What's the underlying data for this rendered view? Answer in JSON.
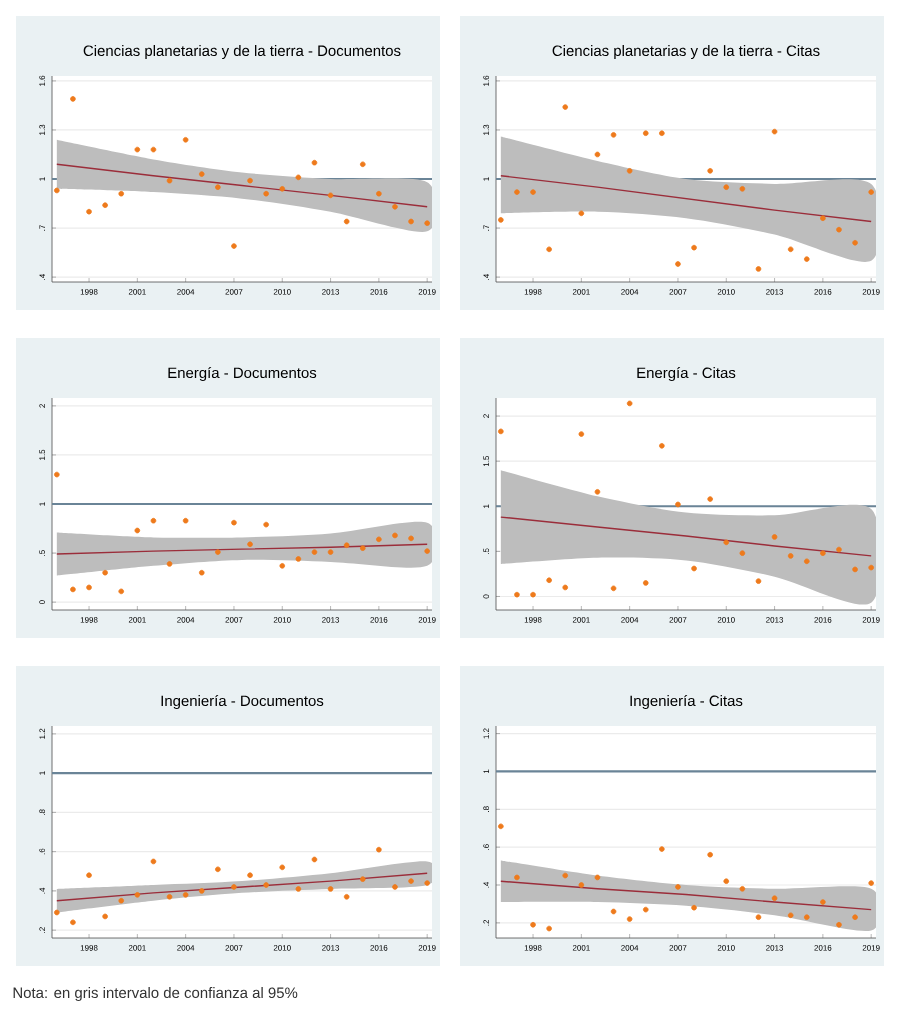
{
  "chart_data": [
    {
      "type": "scatter",
      "title": "Ciencias planetarias y de la tierra - Documentos",
      "xlim": [
        1995.7,
        2019.3
      ],
      "ylim": [
        0.37,
        1.63
      ],
      "xticks": [
        1998,
        2001,
        2004,
        2007,
        2010,
        2013,
        2016,
        2019
      ],
      "yticks": [
        {
          "value": 0.4,
          "label": ".4"
        },
        {
          "value": 0.7,
          "label": ".7"
        },
        1,
        1.3,
        1.6
      ],
      "grid": "y",
      "marker": "circle",
      "ref_lines": [
        {
          "axis": "y",
          "value": 1,
          "color": "#6a8497"
        }
      ],
      "series": [
        {
          "type": "line",
          "marker": "none",
          "color": "#9b2d3a",
          "x": [
            1996,
            2002,
            2007.5,
            2013,
            2019
          ],
          "values": [
            1.09,
            1.02,
            0.96,
            0.9,
            0.83
          ],
          "lower": [
            0.94,
            0.92,
            0.88,
            0.8,
            0.68
          ],
          "upper": [
            1.24,
            1.12,
            1.04,
            1.0,
            0.98
          ]
        },
        {
          "color": "#ee7a1c",
          "x": [
            1996,
            1997,
            1998,
            1999,
            2000,
            2001,
            2002,
            2003,
            2004,
            2005,
            2006,
            2007,
            2008,
            2009,
            2010,
            2011,
            2012,
            2013,
            2014,
            2015,
            2016,
            2017,
            2018,
            2019
          ],
          "values": [
            0.93,
            1.49,
            0.8,
            0.84,
            0.91,
            1.18,
            1.18,
            0.99,
            1.24,
            1.03,
            0.95,
            0.59,
            0.99,
            0.91,
            0.94,
            1.01,
            1.1,
            0.9,
            0.74,
            1.09,
            0.91,
            0.83,
            0.74,
            0.73
          ]
        }
      ]
    },
    {
      "type": "scatter",
      "title": "Ciencias planetarias y de la tierra - Citas",
      "xlim": [
        1995.7,
        2019.3
      ],
      "ylim": [
        0.37,
        1.63
      ],
      "xticks": [
        1998,
        2001,
        2004,
        2007,
        2010,
        2013,
        2016,
        2019
      ],
      "yticks": [
        {
          "value": 0.4,
          "label": ".4"
        },
        {
          "value": 0.7,
          "label": ".7"
        },
        1,
        1.3,
        1.6
      ],
      "grid": "y",
      "marker": "circle",
      "ref_lines": [
        {
          "axis": "y",
          "value": 1,
          "color": "#6a8497"
        }
      ],
      "series": [
        {
          "type": "line",
          "marker": "none",
          "color": "#9b2d3a",
          "x": [
            1996,
            2002,
            2007.5,
            2013,
            2019
          ],
          "values": [
            1.02,
            0.95,
            0.88,
            0.81,
            0.74
          ],
          "lower": [
            0.79,
            0.8,
            0.76,
            0.66,
            0.5
          ],
          "upper": [
            1.26,
            1.11,
            1.0,
            0.97,
            0.97
          ]
        },
        {
          "color": "#ee7a1c",
          "x": [
            1996,
            1997,
            1998,
            1999,
            2000,
            2001,
            2002,
            2003,
            2004,
            2005,
            2006,
            2007,
            2008,
            2009,
            2010,
            2011,
            2012,
            2013,
            2014,
            2015,
            2016,
            2017,
            2018,
            2019
          ],
          "values": [
            0.75,
            0.92,
            0.92,
            0.57,
            1.44,
            0.79,
            1.15,
            1.27,
            1.05,
            1.28,
            1.28,
            0.48,
            0.58,
            1.05,
            0.95,
            0.94,
            0.45,
            1.29,
            0.57,
            0.51,
            0.76,
            0.69,
            0.61,
            0.92
          ]
        }
      ]
    },
    {
      "type": "scatter",
      "title": "Energía - Documentos",
      "xlim": [
        1995.7,
        2019.3
      ],
      "ylim": [
        -0.08,
        2.08
      ],
      "xticks": [
        1998,
        2001,
        2004,
        2007,
        2010,
        2013,
        2016,
        2019
      ],
      "yticks": [
        0,
        {
          "value": 0.5,
          "label": ".5"
        },
        1,
        1.5,
        2
      ],
      "grid": "y",
      "marker": "circle",
      "ref_lines": [
        {
          "axis": "y",
          "value": 1,
          "color": "#6a8497"
        }
      ],
      "series": [
        {
          "type": "line",
          "marker": "none",
          "color": "#9b2d3a",
          "x": [
            1996,
            2002,
            2007.5,
            2013,
            2019
          ],
          "values": [
            0.49,
            0.52,
            0.54,
            0.56,
            0.59
          ],
          "lower": [
            0.27,
            0.37,
            0.43,
            0.41,
            0.37
          ],
          "upper": [
            0.71,
            0.66,
            0.66,
            0.7,
            0.81
          ]
        },
        {
          "color": "#ee7a1c",
          "x": [
            1996,
            1997,
            1998,
            1999,
            2000,
            2001,
            2002,
            2003,
            2004,
            2005,
            2006,
            2007,
            2008,
            2009,
            2010,
            2011,
            2012,
            2013,
            2014,
            2015,
            2016,
            2017,
            2018,
            2019
          ],
          "values": [
            1.3,
            0.13,
            0.15,
            0.3,
            0.11,
            0.73,
            0.83,
            0.39,
            0.83,
            0.3,
            0.51,
            0.81,
            0.59,
            0.79,
            0.37,
            0.44,
            0.51,
            0.51,
            0.58,
            0.55,
            0.64,
            0.68,
            0.65,
            0.52
          ]
        }
      ]
    },
    {
      "type": "scatter",
      "title": "Energía - Citas",
      "xlim": [
        1995.7,
        2019.3
      ],
      "ylim": [
        -0.15,
        2.2
      ],
      "xticks": [
        1998,
        2001,
        2004,
        2007,
        2010,
        2013,
        2016,
        2019
      ],
      "yticks": [
        0,
        {
          "value": 0.5,
          "label": ".5"
        },
        1,
        1.5,
        2
      ],
      "grid": "y",
      "marker": "circle",
      "ref_lines": [
        {
          "axis": "y",
          "value": 1,
          "color": "#6a8497"
        }
      ],
      "series": [
        {
          "type": "line",
          "marker": "none",
          "color": "#9b2d3a",
          "x": [
            1996,
            2002,
            2007.5,
            2013,
            2019
          ],
          "values": [
            0.88,
            0.77,
            0.67,
            0.56,
            0.45
          ],
          "lower": [
            0.36,
            0.43,
            0.4,
            0.22,
            -0.07
          ],
          "upper": [
            1.4,
            1.11,
            0.93,
            0.9,
            0.97
          ]
        },
        {
          "color": "#ee7a1c",
          "x": [
            1996,
            1997,
            1998,
            1999,
            2000,
            2001,
            2002,
            2003,
            2004,
            2005,
            2006,
            2007,
            2008,
            2009,
            2010,
            2011,
            2012,
            2013,
            2014,
            2015,
            2016,
            2017,
            2018,
            2019
          ],
          "values": [
            1.83,
            0.02,
            0.02,
            0.18,
            0.1,
            1.8,
            1.16,
            0.09,
            2.14,
            0.15,
            1.67,
            1.02,
            0.31,
            1.08,
            0.6,
            0.48,
            0.17,
            0.66,
            0.45,
            0.39,
            0.48,
            0.52,
            0.3,
            0.32
          ]
        }
      ]
    },
    {
      "type": "scatter",
      "title": "Ingeniería - Documentos",
      "xlim": [
        1995.7,
        2019.3
      ],
      "ylim": [
        0.16,
        1.24
      ],
      "xticks": [
        1998,
        2001,
        2004,
        2007,
        2010,
        2013,
        2016,
        2019
      ],
      "yticks": [
        {
          "value": 0.2,
          "label": ".2"
        },
        {
          "value": 0.4,
          "label": ".4"
        },
        {
          "value": 0.6,
          "label": ".6"
        },
        {
          "value": 0.8,
          "label": ".8"
        },
        1,
        1.2
      ],
      "grid": "y",
      "marker": "circle",
      "annotations": [
        "Nota: en gris intervalo de confianza al 95%"
      ],
      "ref_lines": [
        {
          "axis": "y",
          "value": 1,
          "color": "#6a8497"
        }
      ],
      "series": [
        {
          "type": "line",
          "marker": "none",
          "color": "#9b2d3a",
          "x": [
            1996,
            2002,
            2007.5,
            2013,
            2019
          ],
          "values": [
            0.35,
            0.39,
            0.42,
            0.45,
            0.49
          ],
          "lower": [
            0.29,
            0.35,
            0.39,
            0.41,
            0.43
          ],
          "upper": [
            0.41,
            0.43,
            0.45,
            0.49,
            0.55
          ]
        },
        {
          "color": "#ee7a1c",
          "x": [
            1996,
            1997,
            1998,
            1999,
            2000,
            2001,
            2002,
            2003,
            2004,
            2005,
            2006,
            2007,
            2008,
            2009,
            2010,
            2011,
            2012,
            2013,
            2014,
            2015,
            2016,
            2017,
            2018,
            2019
          ],
          "values": [
            0.29,
            0.24,
            0.48,
            0.27,
            0.35,
            0.38,
            0.55,
            0.37,
            0.38,
            0.4,
            0.51,
            0.42,
            0.48,
            0.43,
            0.52,
            0.41,
            0.56,
            0.41,
            0.37,
            0.46,
            0.61,
            0.42,
            0.45,
            0.44
          ]
        }
      ]
    },
    {
      "type": "scatter",
      "title": "Ingeniería - Citas",
      "xlim": [
        1995.7,
        2019.3
      ],
      "ylim": [
        0.12,
        1.24
      ],
      "xticks": [
        1998,
        2001,
        2004,
        2007,
        2010,
        2013,
        2016,
        2019
      ],
      "yticks": [
        {
          "value": 0.2,
          "label": ".2"
        },
        {
          "value": 0.4,
          "label": ".4"
        },
        {
          "value": 0.6,
          "label": ".6"
        },
        {
          "value": 0.8,
          "label": ".8"
        },
        1,
        1.2
      ],
      "grid": "y",
      "marker": "circle",
      "ref_lines": [
        {
          "axis": "y",
          "value": 1,
          "color": "#6a8497"
        }
      ],
      "series": [
        {
          "type": "line",
          "marker": "none",
          "color": "#9b2d3a",
          "x": [
            1996,
            2002,
            2007.5,
            2013,
            2019
          ],
          "values": [
            0.42,
            0.38,
            0.35,
            0.31,
            0.27
          ],
          "lower": [
            0.31,
            0.31,
            0.29,
            0.24,
            0.16
          ],
          "upper": [
            0.53,
            0.45,
            0.4,
            0.38,
            0.38
          ]
        },
        {
          "color": "#ee7a1c",
          "x": [
            1996,
            1997,
            1998,
            1999,
            2000,
            2001,
            2002,
            2003,
            2004,
            2005,
            2006,
            2007,
            2008,
            2009,
            2010,
            2011,
            2012,
            2013,
            2014,
            2015,
            2016,
            2017,
            2018,
            2019
          ],
          "values": [
            0.71,
            0.44,
            0.19,
            0.17,
            0.45,
            0.4,
            0.44,
            0.26,
            0.22,
            0.27,
            0.59,
            0.39,
            0.28,
            0.56,
            0.42,
            0.38,
            0.23,
            0.33,
            0.24,
            0.23,
            0.31,
            0.19,
            0.23,
            0.41
          ]
        }
      ]
    }
  ]
}
